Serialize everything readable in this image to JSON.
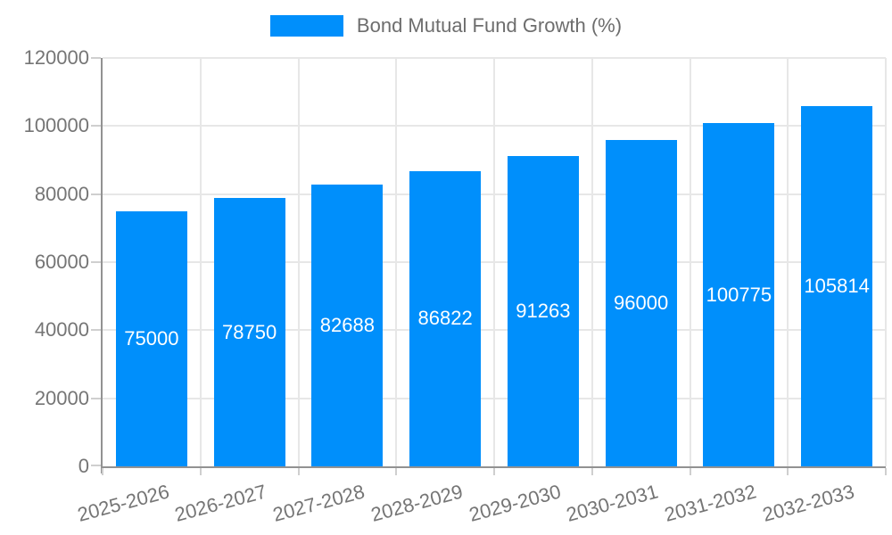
{
  "chart_data": {
    "type": "bar",
    "title": "Bond Mutual Fund Growth (%)",
    "categories": [
      "2025-2026",
      "2026-2027",
      "2027-2028",
      "2028-2029",
      "2029-2030",
      "2030-2031",
      "2031-2032",
      "2032-2033"
    ],
    "values": [
      75000,
      78750,
      82688,
      86822,
      91263,
      96000,
      100775,
      105814
    ],
    "xlabel": "",
    "ylabel": "",
    "ylim": [
      0,
      120000
    ],
    "yticks": [
      0,
      20000,
      40000,
      60000,
      80000,
      100000,
      120000
    ],
    "grid": true,
    "legend_position": "top",
    "x_label_rotation_deg": -15,
    "colors": {
      "bar": "#008FFB",
      "data_label": "#ffffff",
      "axis_text": "#757575",
      "legend_text": "#6d6d6d",
      "gridline": "#e7e7e7",
      "axis_line": "#929292",
      "background": "#ffffff"
    }
  }
}
